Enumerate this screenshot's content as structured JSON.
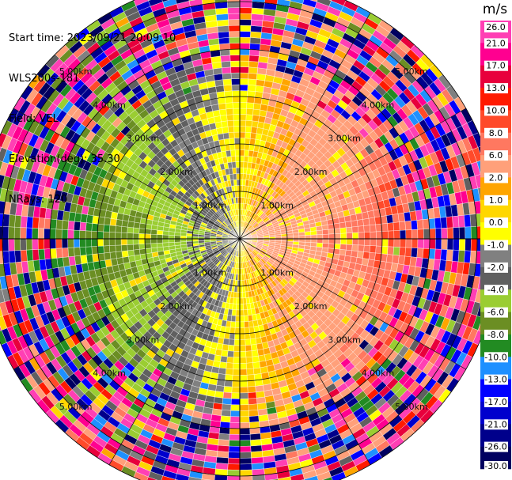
{
  "header": {
    "start_time": "Start time: 2023/09/21 20:09:10",
    "instrument": "WLS200s-181",
    "field": "Field: VEL",
    "elevation": "Elevation(deg): 35.30",
    "nrays": "NRays: 120"
  },
  "colorbar": {
    "unit": "m/s",
    "ticks": [
      "26.0",
      "21.0",
      "17.0",
      "13.0",
      "10.0",
      "8.0",
      "6.0",
      "2.0",
      "1.0",
      "0.0",
      "-1.0",
      "-2.0",
      "-4.0",
      "-6.0",
      "-8.0",
      "-10.0",
      "-13.0",
      "-17.0",
      "-21.0",
      "-26.0",
      "-30.0"
    ],
    "colors": [
      "#ff3fb4",
      "#ff0090",
      "#e8003c",
      "#ff1a00",
      "#ff4a2a",
      "#ff7860",
      "#ffa07a",
      "#ffa500",
      "#ffd700",
      "#ffff00",
      "#808080",
      "#606060",
      "#9acd32",
      "#6b8e23",
      "#228b22",
      "#1e90ff",
      "#0000ff",
      "#0000cd",
      "#00008b",
      "#000060"
    ]
  },
  "chart_data": {
    "type": "ppi",
    "field": "VEL",
    "units": "m/s",
    "nrays": 120,
    "elevation_deg": 35.3,
    "range_rings_km": [
      1.0,
      2.0,
      3.0,
      4.0,
      5.0
    ],
    "ring_labels": [
      "1.00km",
      "2.00km",
      "3.00km",
      "4.00km",
      "5.00km"
    ],
    "max_range_km": 5.5,
    "crosshair_angles_deg": [
      0,
      30,
      60,
      90,
      120,
      150
    ],
    "vmin": -30.0,
    "vmax": 30.0,
    "pattern": {
      "description_values": "positive (yellow/orange, 2-8 m/s) east, negative (green, -2 to -6 m/s) west, noisy speckle beyond about 3 km",
      "positive_sector_center_deg": 90,
      "near_field_magnitude": 3.0,
      "far_field_magnitude": 8.0,
      "clean_range_km": 3.1
    }
  }
}
